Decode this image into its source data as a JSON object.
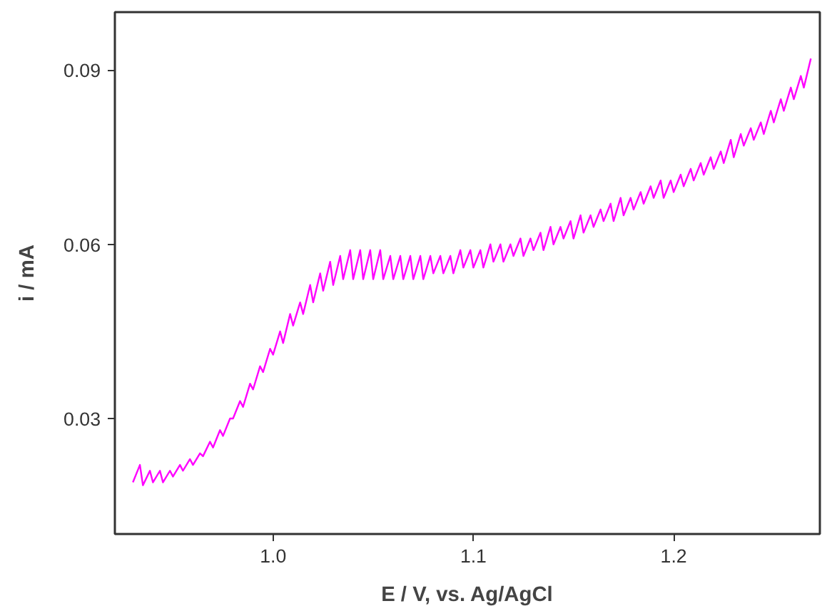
{
  "chart_data": {
    "type": "line",
    "xlabel": "E / V, vs. Ag/AgCl",
    "ylabel": "i / mA",
    "xlim": [
      0.921,
      1.273
    ],
    "ylim": [
      0.0101,
      0.1
    ],
    "xticks": [
      {
        "value": 1.0,
        "label": "1.0"
      },
      {
        "value": 1.1,
        "label": "1.1"
      },
      {
        "value": 1.2,
        "label": "1.2"
      }
    ],
    "yticks": [
      0.03,
      0.06,
      0.09
    ],
    "grid": false,
    "marker": "none",
    "line_style": "solid",
    "series": [
      {
        "color": "#ff00ff",
        "x": [
          0.93,
          0.9335,
          0.935,
          0.9385,
          0.94,
          0.9435,
          0.945,
          0.9485,
          0.95,
          0.9535,
          0.955,
          0.9585,
          0.96,
          0.9635,
          0.965,
          0.9685,
          0.97,
          0.9735,
          0.975,
          0.9785,
          0.98,
          0.9835,
          0.985,
          0.9885,
          0.99,
          0.9935,
          0.995,
          0.9985,
          1.0,
          1.0035,
          1.005,
          1.0085,
          1.01,
          1.0135,
          1.015,
          1.0185,
          1.02,
          1.0235,
          1.025,
          1.0285,
          1.03,
          1.0335,
          1.035,
          1.0385,
          1.04,
          1.0435,
          1.045,
          1.0485,
          1.05,
          1.0535,
          1.055,
          1.0585,
          1.06,
          1.0635,
          1.065,
          1.0685,
          1.07,
          1.0735,
          1.075,
          1.0785,
          1.08,
          1.0835,
          1.085,
          1.0885,
          1.09,
          1.0935,
          1.095,
          1.0985,
          1.1,
          1.1035,
          1.105,
          1.1085,
          1.11,
          1.1135,
          1.115,
          1.1185,
          1.12,
          1.1235,
          1.125,
          1.1285,
          1.13,
          1.1335,
          1.135,
          1.1385,
          1.14,
          1.1435,
          1.145,
          1.1485,
          1.15,
          1.1535,
          1.155,
          1.1585,
          1.16,
          1.1635,
          1.165,
          1.1685,
          1.17,
          1.1735,
          1.175,
          1.1785,
          1.18,
          1.1835,
          1.185,
          1.1885,
          1.19,
          1.1935,
          1.195,
          1.1985,
          1.2,
          1.2035,
          1.205,
          1.2085,
          1.21,
          1.2135,
          1.215,
          1.2185,
          1.22,
          1.2235,
          1.225,
          1.2285,
          1.23,
          1.2335,
          1.235,
          1.2385,
          1.24,
          1.2435,
          1.245,
          1.2485,
          1.25,
          1.2535,
          1.255,
          1.2585,
          1.26,
          1.2635,
          1.265,
          1.2685
        ],
        "values": [
          0.019,
          0.022,
          0.0185,
          0.021,
          0.019,
          0.021,
          0.019,
          0.021,
          0.02,
          0.022,
          0.021,
          0.023,
          0.022,
          0.024,
          0.0235,
          0.026,
          0.025,
          0.028,
          0.027,
          0.03,
          0.03,
          0.033,
          0.032,
          0.036,
          0.035,
          0.039,
          0.038,
          0.042,
          0.041,
          0.045,
          0.043,
          0.048,
          0.046,
          0.05,
          0.048,
          0.053,
          0.05,
          0.055,
          0.052,
          0.057,
          0.053,
          0.058,
          0.054,
          0.059,
          0.054,
          0.059,
          0.054,
          0.059,
          0.054,
          0.059,
          0.054,
          0.058,
          0.054,
          0.058,
          0.054,
          0.058,
          0.054,
          0.058,
          0.054,
          0.058,
          0.055,
          0.058,
          0.055,
          0.058,
          0.055,
          0.059,
          0.056,
          0.059,
          0.056,
          0.059,
          0.056,
          0.06,
          0.057,
          0.06,
          0.057,
          0.06,
          0.058,
          0.061,
          0.058,
          0.061,
          0.059,
          0.062,
          0.059,
          0.063,
          0.06,
          0.063,
          0.061,
          0.064,
          0.061,
          0.065,
          0.062,
          0.065,
          0.063,
          0.066,
          0.064,
          0.067,
          0.064,
          0.068,
          0.065,
          0.068,
          0.066,
          0.069,
          0.067,
          0.07,
          0.068,
          0.071,
          0.068,
          0.071,
          0.069,
          0.072,
          0.07,
          0.073,
          0.071,
          0.074,
          0.072,
          0.075,
          0.073,
          0.076,
          0.074,
          0.078,
          0.075,
          0.079,
          0.077,
          0.08,
          0.078,
          0.081,
          0.079,
          0.083,
          0.081,
          0.085,
          0.083,
          0.087,
          0.085,
          0.089,
          0.087,
          0.092
        ]
      }
    ]
  }
}
